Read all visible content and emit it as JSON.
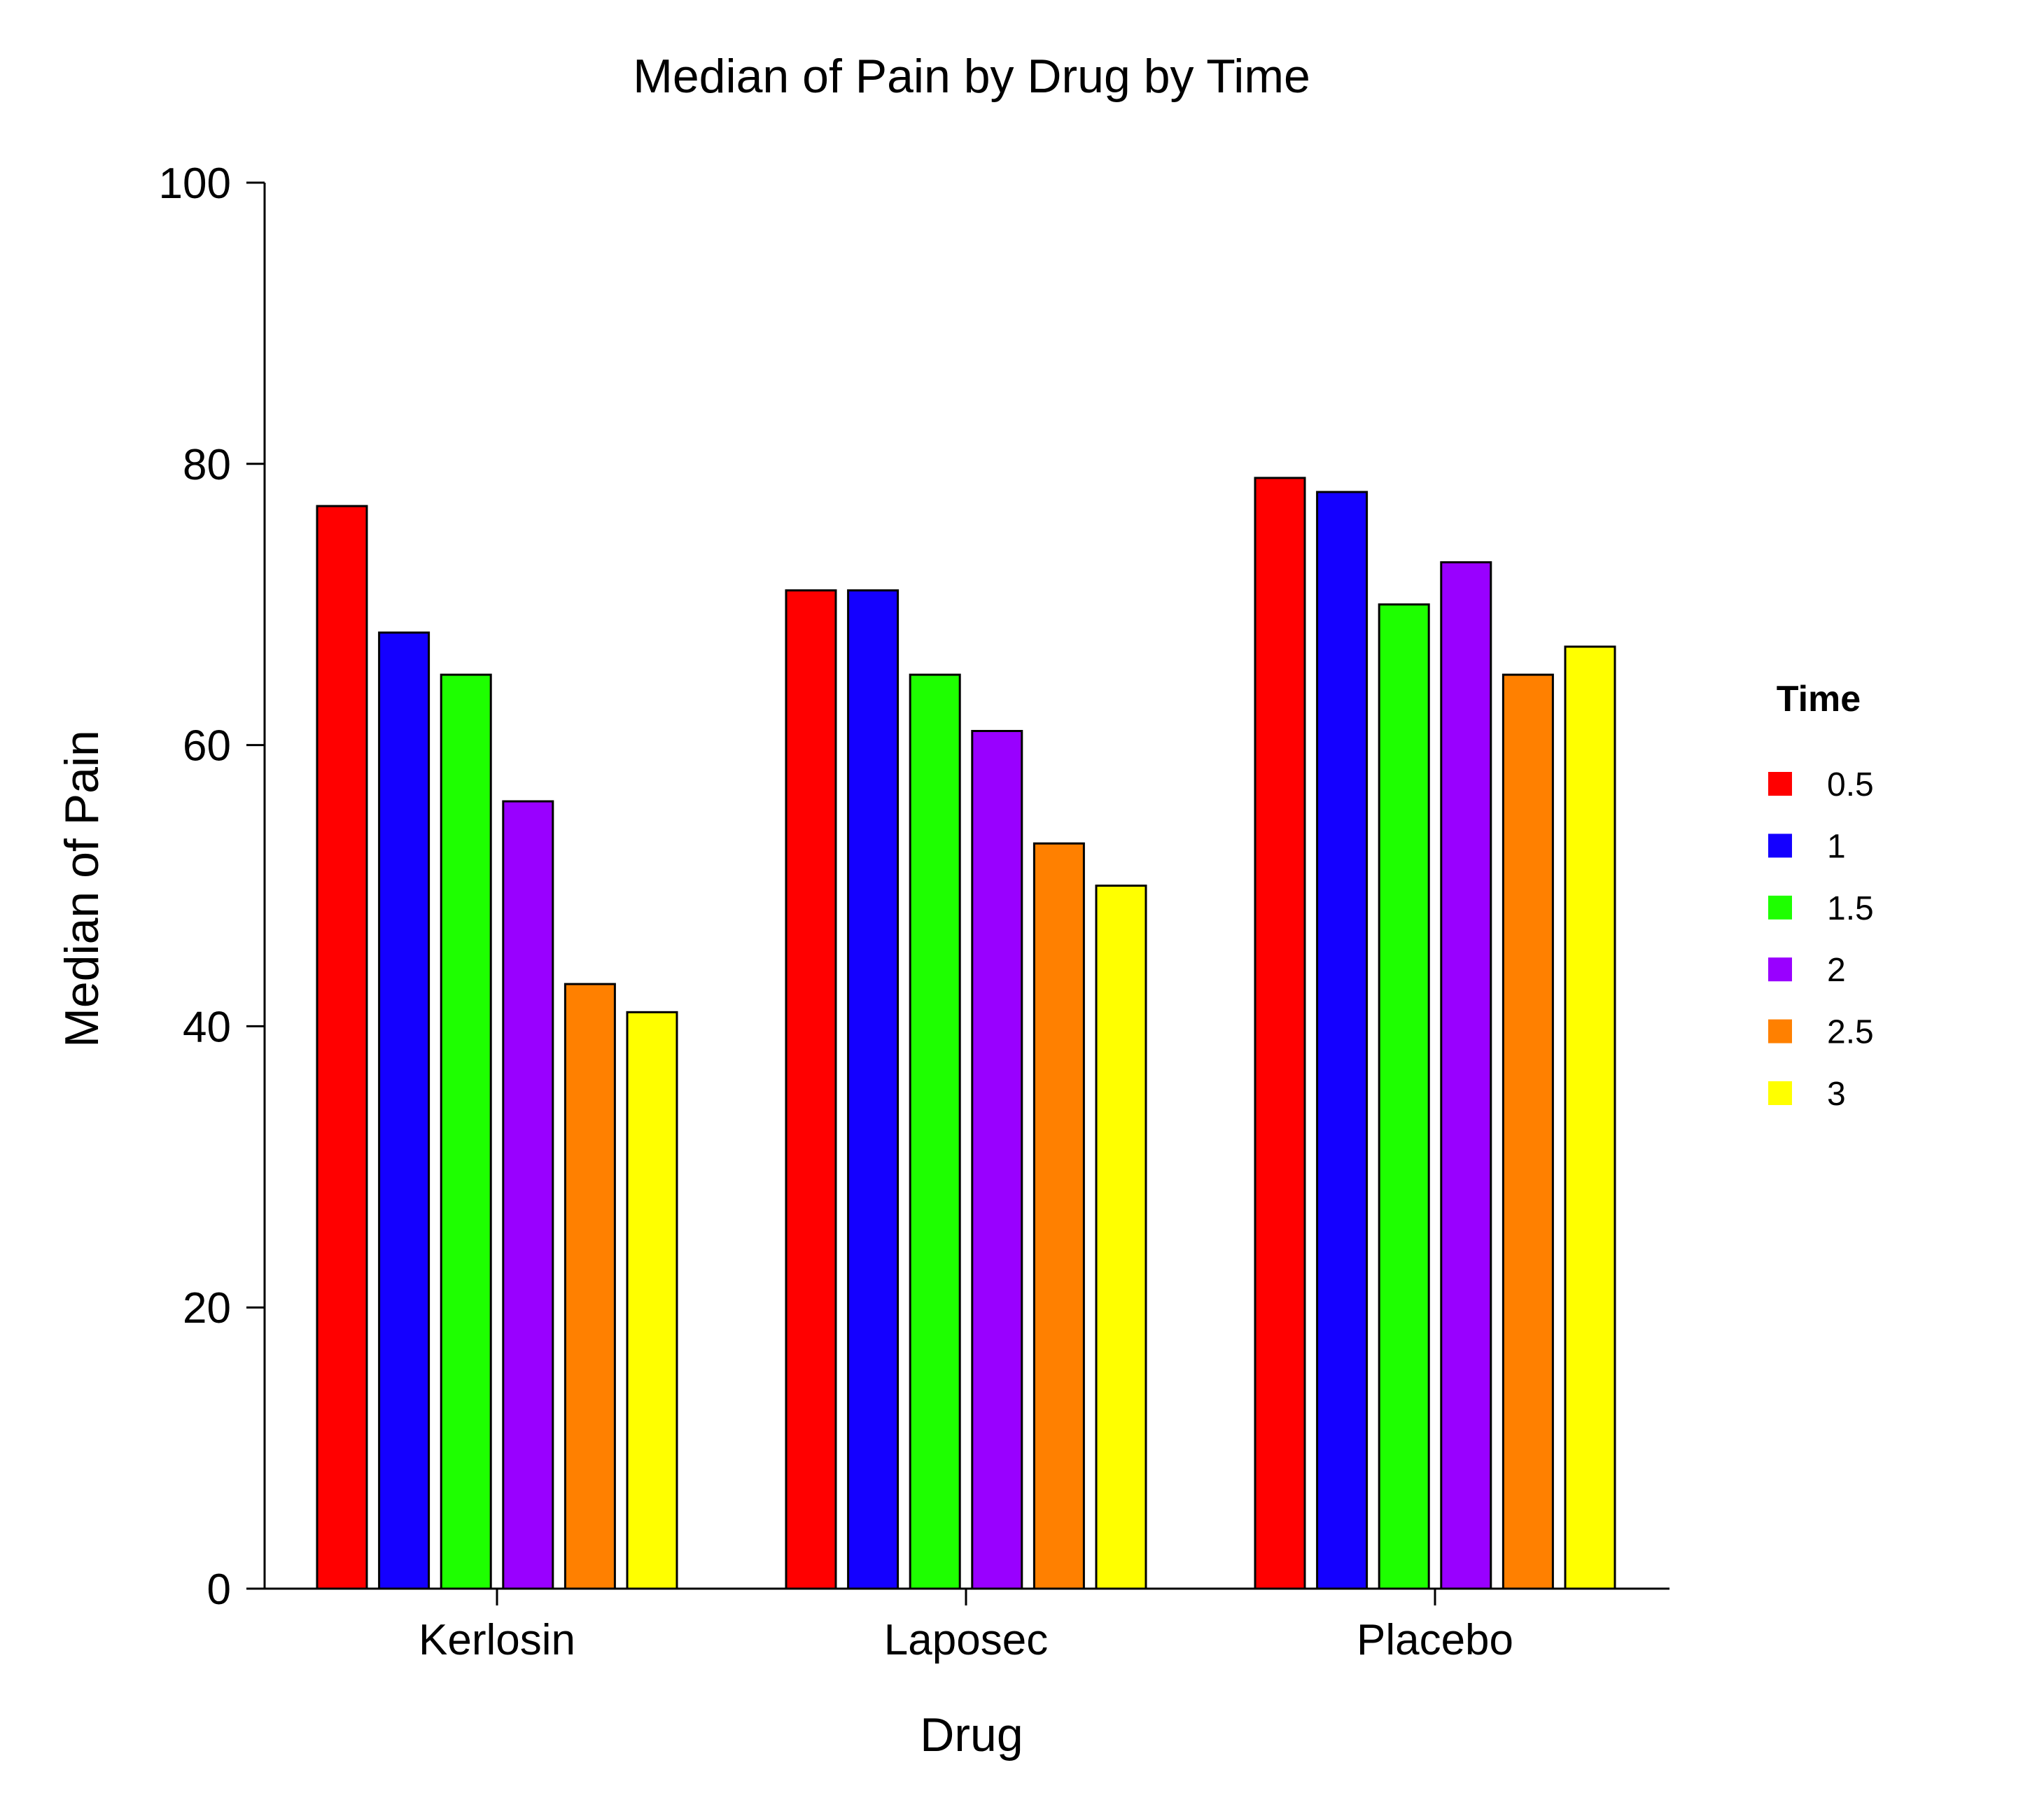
{
  "chart_data": {
    "type": "bar",
    "title": "Median of Pain by Drug by Time",
    "xlabel": "Drug",
    "ylabel": "Median of Pain",
    "categories": [
      "Kerlosin",
      "Laposec",
      "Placebo"
    ],
    "ylim": [
      0,
      100
    ],
    "yticks": [
      "0",
      "20",
      "40",
      "60",
      "80",
      "100"
    ],
    "legend_title": "Time",
    "legend_placement": "right",
    "grid": false,
    "series": [
      {
        "name": "0.5",
        "color": "#ff0000",
        "values": [
          77,
          71,
          79
        ]
      },
      {
        "name": "1",
        "color": "#1400ff",
        "values": [
          68,
          71,
          78
        ]
      },
      {
        "name": "1.5",
        "color": "#1eff00",
        "values": [
          65,
          65,
          70
        ]
      },
      {
        "name": "2",
        "color": "#9900ff",
        "values": [
          56,
          61,
          73
        ]
      },
      {
        "name": "2.5",
        "color": "#ff8000",
        "values": [
          43,
          53,
          65
        ]
      },
      {
        "name": "3",
        "color": "#ffff00",
        "values": [
          41,
          50,
          67
        ]
      }
    ]
  }
}
